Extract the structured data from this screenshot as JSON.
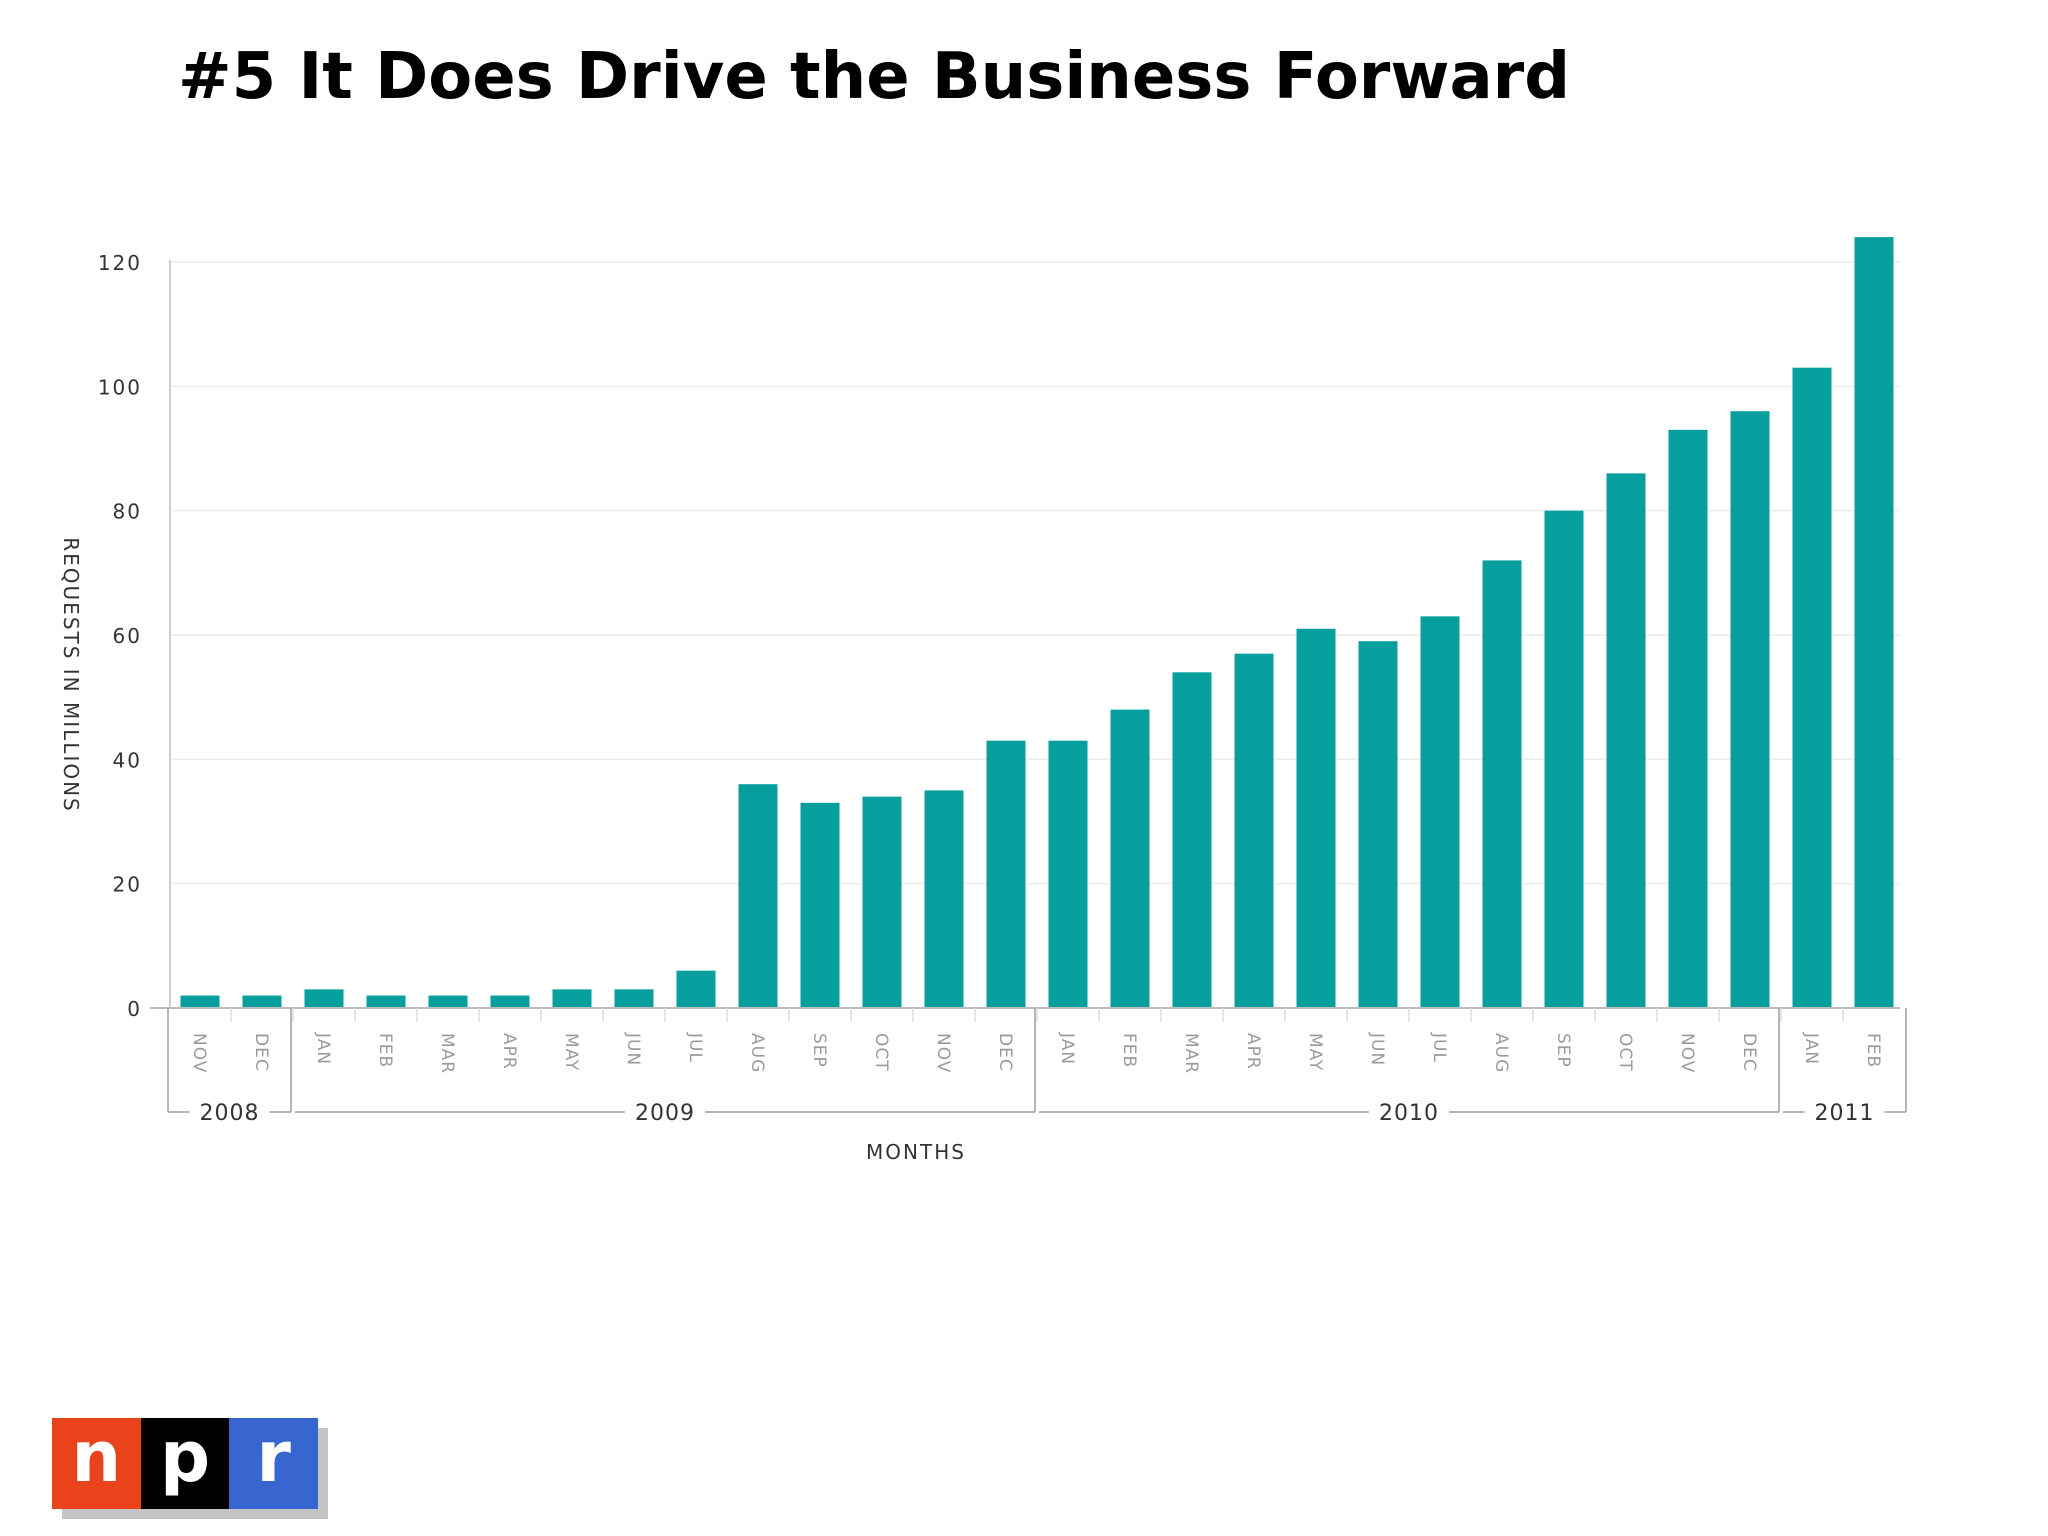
{
  "slide": {
    "title": "#5  It Does Drive the Business Forward"
  },
  "logo": {
    "letters": [
      "n",
      "p",
      "r"
    ],
    "colors": [
      "#e8431b",
      "#000000",
      "#3866d0"
    ]
  },
  "chart_data": {
    "type": "bar",
    "title": "",
    "xlabel": "MONTHS",
    "ylabel": "REQUESTS IN MILLIONS",
    "ylim": [
      0,
      120
    ],
    "yticks": [
      0,
      20,
      40,
      60,
      80,
      100,
      120
    ],
    "grid": true,
    "legend": "none",
    "bar_color": "#079e9e",
    "categories": [
      "NOV",
      "DEC",
      "JAN",
      "FEB",
      "MAR",
      "APR",
      "MAY",
      "JUN",
      "JUL",
      "AUG",
      "SEP",
      "OCT",
      "NOV",
      "DEC",
      "JAN",
      "FEB",
      "MAR",
      "APR",
      "MAY",
      "JUN",
      "JUL",
      "AUG",
      "SEP",
      "OCT",
      "NOV",
      "DEC",
      "JAN",
      "FEB"
    ],
    "values": [
      2,
      2,
      3,
      2,
      2,
      2,
      3,
      3,
      6,
      36,
      33,
      34,
      35,
      43,
      43,
      48,
      54,
      57,
      61,
      59,
      63,
      72,
      80,
      86,
      93,
      96,
      103,
      124
    ],
    "years": [
      {
        "label": "2008",
        "count": 2
      },
      {
        "label": "2009",
        "count": 12
      },
      {
        "label": "2010",
        "count": 12
      },
      {
        "label": "2011",
        "count": 2
      }
    ]
  }
}
